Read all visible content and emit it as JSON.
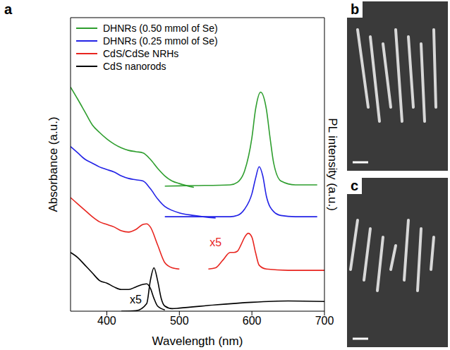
{
  "panels": [
    "a",
    "b",
    "c"
  ],
  "chart_data": {
    "type": "line",
    "x_label": "Wavelength (nm)",
    "y_label": "Absorbance (a.u.)",
    "y2_label": "PL intensity (a.u.)",
    "xlim": [
      350,
      700
    ],
    "xticks": [
      400,
      500,
      600,
      700
    ],
    "ylim": [
      0,
      11.5
    ],
    "y2lim": [
      0,
      11.5
    ],
    "tick_labels": "x",
    "legend": "upper left",
    "series": [
      {
        "name": "DHNRs (0.50 mmol of Se)",
        "color": "#2e9e2e",
        "absorbance": {
          "x": [
            350,
            360,
            370,
            380,
            390,
            400,
            410,
            420,
            430,
            440,
            450,
            460,
            470,
            480,
            490,
            500,
            520
          ],
          "values": [
            8.78,
            8.3,
            7.8,
            7.3,
            7.0,
            6.75,
            6.55,
            6.4,
            6.3,
            6.25,
            6.2,
            5.95,
            5.6,
            5.3,
            5.1,
            5.0,
            4.85
          ]
        },
        "pl": {
          "axis": "y2",
          "x": [
            480,
            520,
            570,
            580,
            590,
            600,
            605,
            612,
            620,
            625,
            630,
            640,
            660,
            690
          ],
          "values": [
            4.9,
            4.92,
            4.95,
            5.05,
            5.5,
            6.8,
            7.9,
            8.58,
            7.9,
            6.8,
            5.8,
            5.1,
            4.95,
            4.95
          ]
        }
      },
      {
        "name": "DHNRs (0.25 mmol of Se)",
        "color": "#2323e6",
        "absorbance": {
          "x": [
            350,
            360,
            370,
            380,
            390,
            400,
            410,
            420,
            430,
            440,
            450,
            460,
            470,
            480,
            490,
            500,
            520,
            550
          ],
          "values": [
            6.45,
            6.2,
            5.95,
            5.8,
            5.65,
            5.55,
            5.45,
            5.3,
            5.2,
            5.15,
            5.1,
            4.8,
            4.4,
            4.1,
            3.95,
            3.85,
            3.75,
            3.65
          ]
        },
        "pl": {
          "axis": "y2",
          "x": [
            480,
            520,
            570,
            580,
            590,
            600,
            605,
            610,
            615,
            620,
            630,
            640,
            660,
            690
          ],
          "values": [
            3.7,
            3.7,
            3.7,
            3.75,
            4.0,
            4.6,
            5.2,
            5.66,
            5.3,
            4.5,
            3.9,
            3.75,
            3.7,
            3.7
          ]
        }
      },
      {
        "name": "CdS/CdSe NRHs",
        "color": "#e8251f",
        "absorbance": {
          "x": [
            350,
            360,
            370,
            380,
            390,
            400,
            410,
            420,
            430,
            440,
            450,
            455,
            460,
            470,
            480,
            490,
            500
          ],
          "values": [
            4.45,
            4.2,
            3.95,
            3.7,
            3.5,
            3.4,
            3.3,
            3.15,
            3.1,
            3.2,
            3.4,
            3.42,
            3.3,
            2.6,
            1.9,
            1.7,
            1.65
          ]
        },
        "pl": {
          "axis": "y2",
          "x": [
            540,
            550,
            560,
            570,
            575,
            580,
            585,
            590,
            595,
            600,
            605,
            610,
            620,
            650,
            700
          ],
          "values": [
            1.65,
            1.7,
            2.0,
            2.3,
            2.3,
            2.35,
            2.6,
            2.9,
            3.05,
            2.9,
            2.3,
            1.8,
            1.65,
            1.6,
            1.6
          ]
        }
      },
      {
        "name": "CdS nanorods",
        "color": "#000000",
        "absorbance": {
          "x": [
            350,
            360,
            370,
            380,
            390,
            400,
            410,
            420,
            430,
            440,
            450,
            455,
            460,
            465,
            470,
            480
          ],
          "values": [
            2.3,
            2.1,
            1.8,
            1.5,
            1.2,
            1.1,
            0.95,
            0.85,
            0.85,
            0.95,
            1.05,
            1.07,
            0.9,
            0.5,
            0.2,
            0.05
          ]
        },
        "pl": {
          "axis": "y2",
          "x": [
            420,
            440,
            455,
            460,
            465,
            470,
            475,
            480,
            490,
            500,
            550,
            600,
            650,
            700
          ],
          "values": [
            0.0,
            0.02,
            0.3,
            1.2,
            1.7,
            1.2,
            0.5,
            0.2,
            0.1,
            0.12,
            0.25,
            0.35,
            0.4,
            0.38
          ]
        }
      }
    ],
    "annotations": [
      {
        "text": "x5",
        "x": 550,
        "y": 2.7,
        "color": "#e8251f"
      },
      {
        "text": "x5",
        "x": 440,
        "y": 0.45,
        "color": "#000000"
      }
    ]
  }
}
